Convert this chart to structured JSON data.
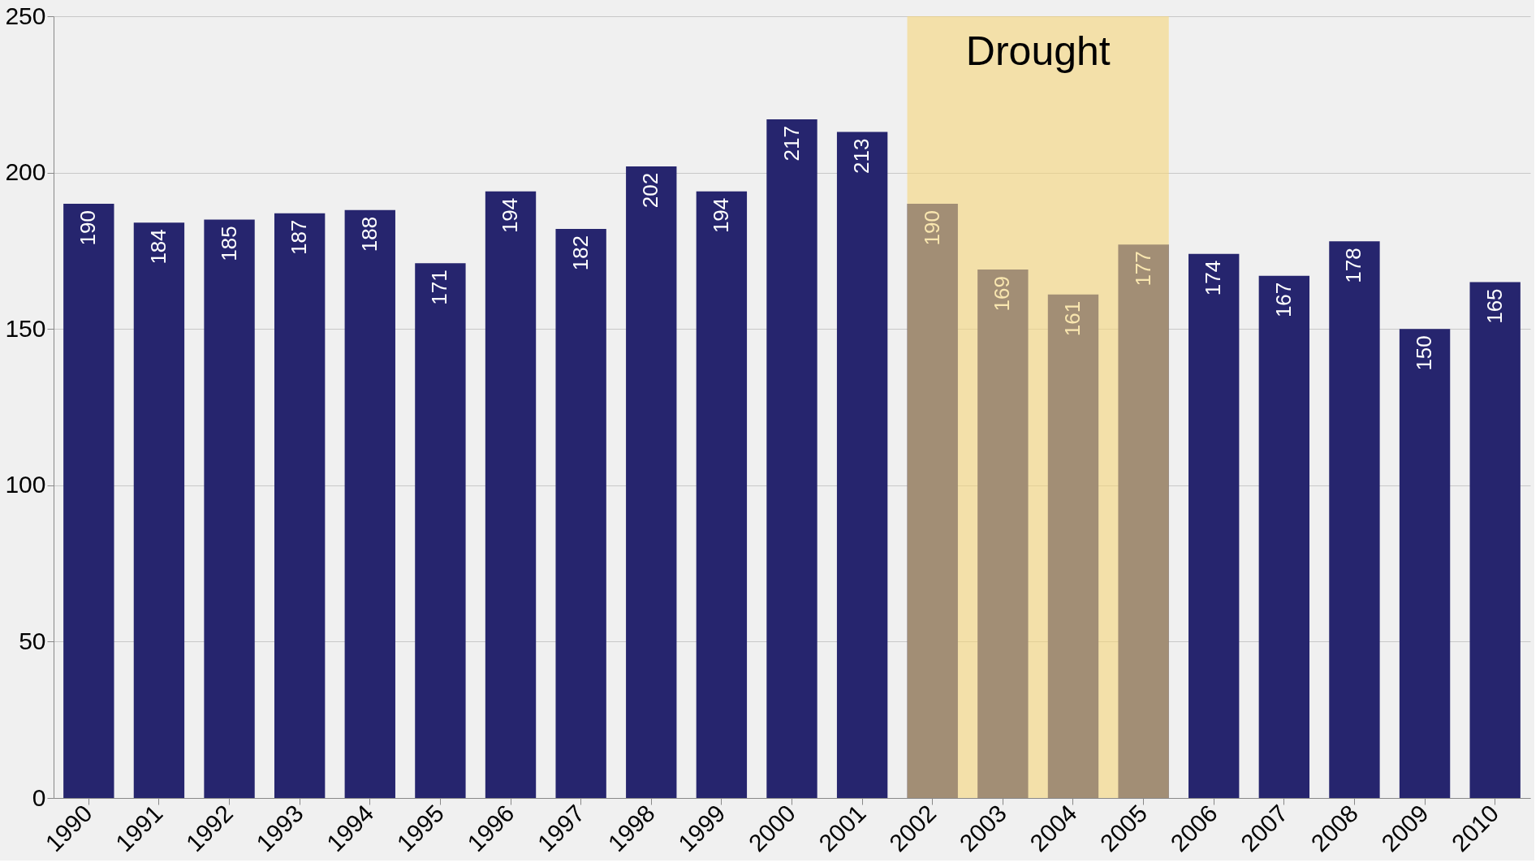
{
  "chart_data": {
    "type": "bar",
    "categories": [
      "1990",
      "1991",
      "1992",
      "1993",
      "1994",
      "1995",
      "1996",
      "1997",
      "1998",
      "1999",
      "2000",
      "2001",
      "2002",
      "2003",
      "2004",
      "2005",
      "2006",
      "2007",
      "2008",
      "2009",
      "2010"
    ],
    "values": [
      190,
      184,
      185,
      187,
      188,
      171,
      194,
      182,
      202,
      194,
      217,
      213,
      190,
      169,
      161,
      177,
      174,
      167,
      178,
      150,
      165
    ],
    "color": "#26256e",
    "ylim": [
      0,
      250
    ],
    "yticks": [
      0,
      50,
      100,
      150,
      200,
      250
    ],
    "grid": "y",
    "data_labels": true,
    "bands": [
      {
        "axis": "x",
        "from": "2002",
        "to": "2005",
        "label": "Drought",
        "color": "#f5d57a"
      }
    ]
  }
}
